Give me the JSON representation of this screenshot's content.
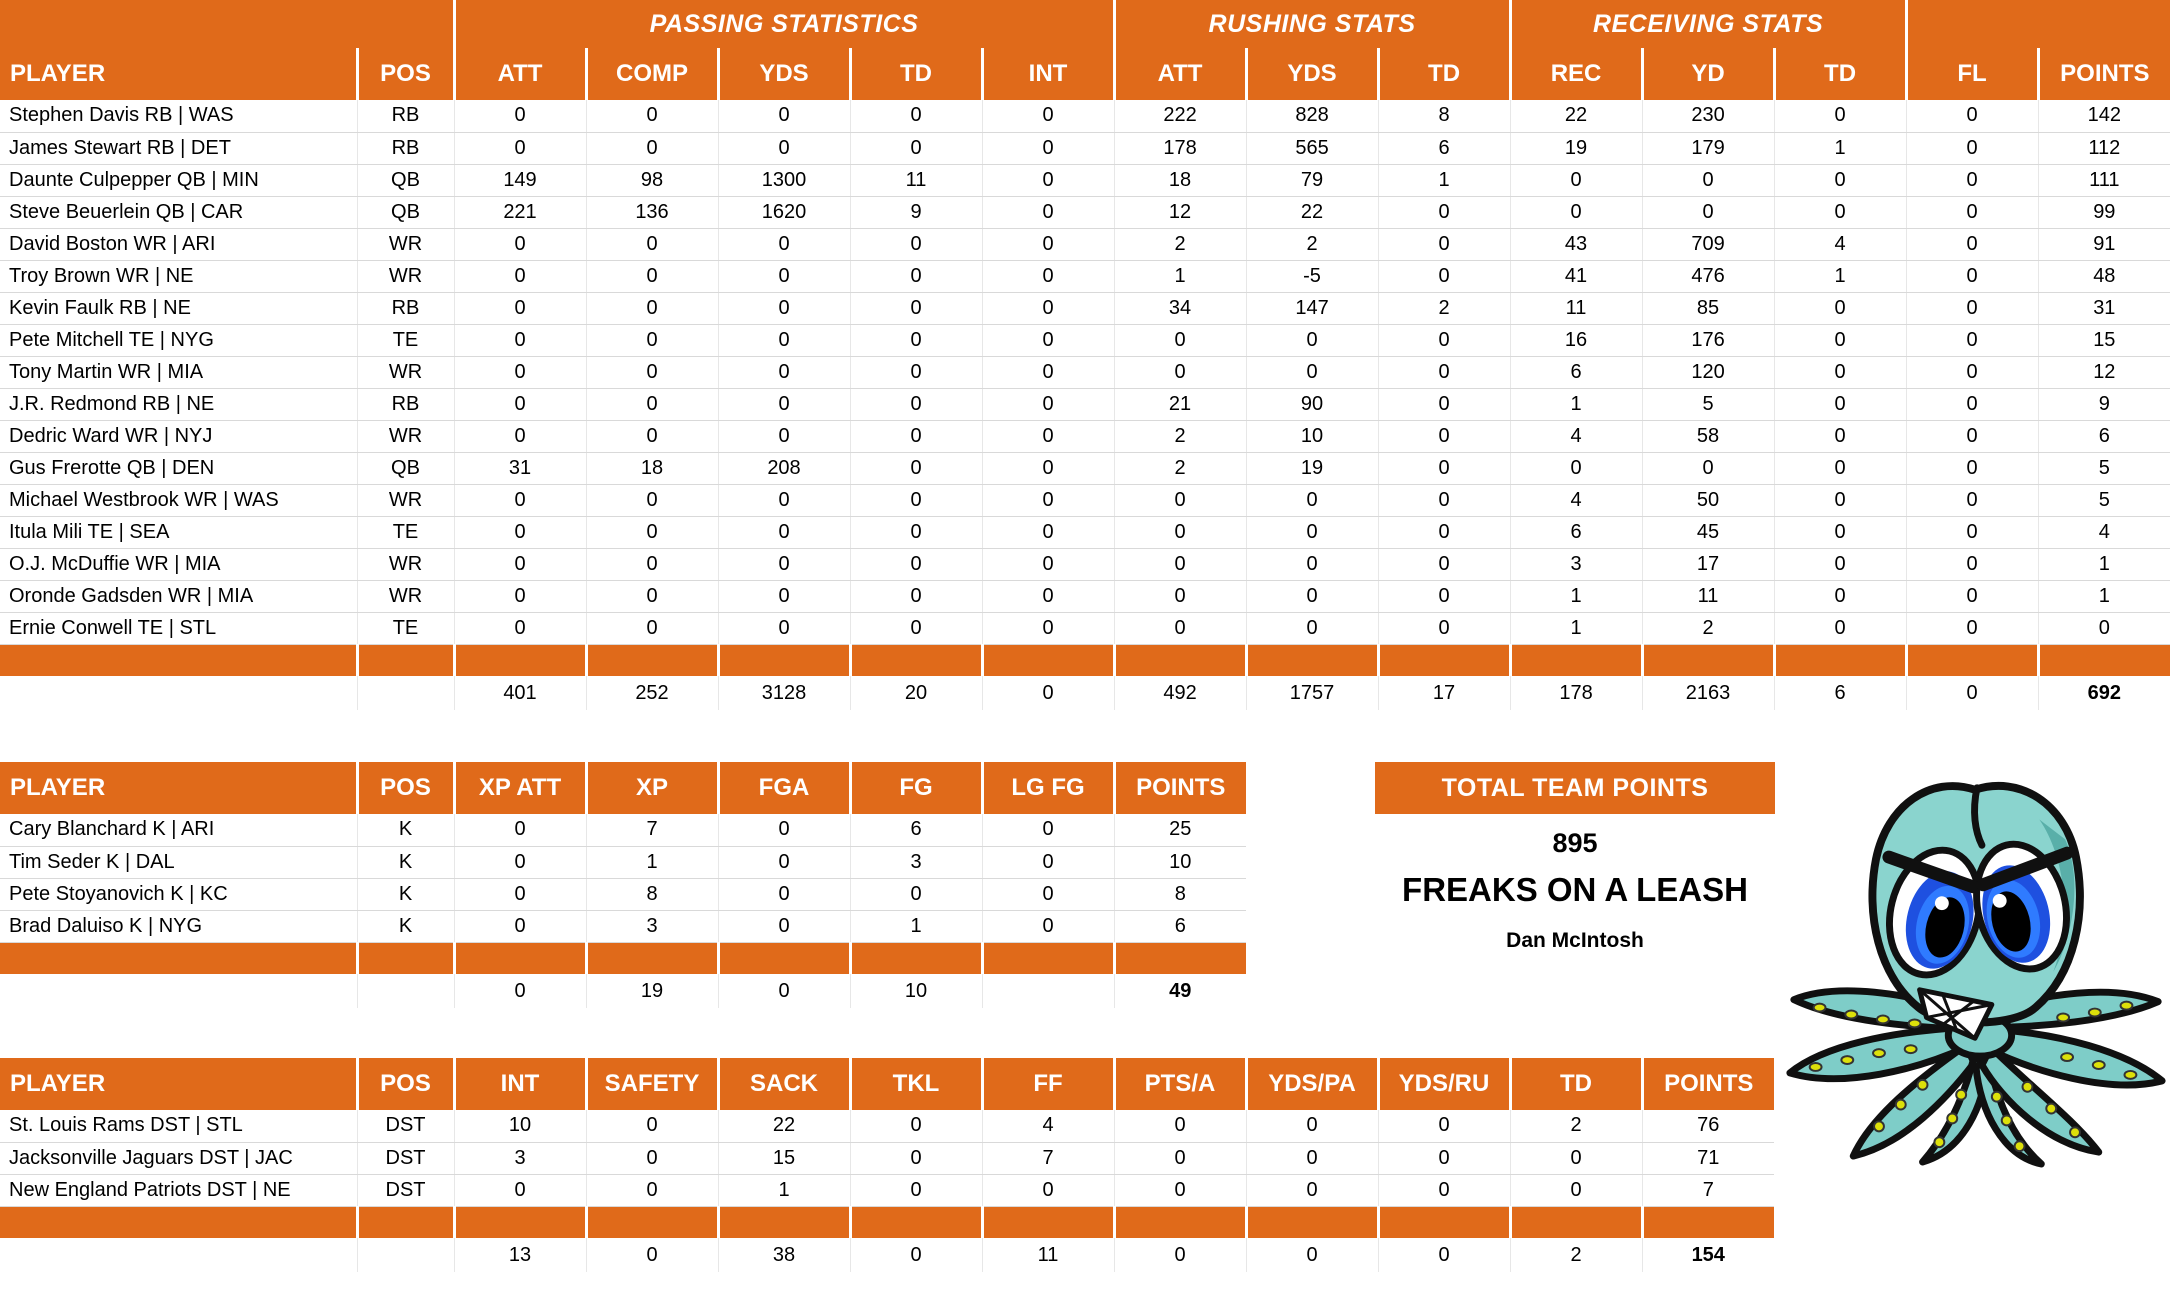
{
  "colors": {
    "accent_orange": "#E06A1A",
    "grid_line": "#D9D9D9",
    "header_text": "#FFFFFF",
    "body_text": "#000000",
    "mascot_teal": "#7ECDC8",
    "mascot_eye_blue": "#1E50E0",
    "mascot_sucker_yellow": "#DDE00A"
  },
  "offense_table": {
    "sections": [
      {
        "label": "",
        "span": 2
      },
      {
        "label": "PASSING STATISTICS",
        "span": 5
      },
      {
        "label": "RUSHING STATS",
        "span": 3
      },
      {
        "label": "RECEIVING STATS",
        "span": 3
      },
      {
        "label": "",
        "span": 2
      }
    ],
    "columns": [
      "PLAYER",
      "POS",
      "ATT",
      "COMP",
      "YDS",
      "TD",
      "INT",
      "ATT",
      "YDS",
      "TD",
      "REC",
      "YD",
      "TD",
      "FL",
      "POINTS"
    ],
    "rows": [
      [
        "Stephen Davis RB | WAS",
        "RB",
        "0",
        "0",
        "0",
        "0",
        "0",
        "222",
        "828",
        "8",
        "22",
        "230",
        "0",
        "0",
        "142"
      ],
      [
        "James Stewart RB | DET",
        "RB",
        "0",
        "0",
        "0",
        "0",
        "0",
        "178",
        "565",
        "6",
        "19",
        "179",
        "1",
        "0",
        "112"
      ],
      [
        "Daunte Culpepper QB | MIN",
        "QB",
        "149",
        "98",
        "1300",
        "11",
        "0",
        "18",
        "79",
        "1",
        "0",
        "0",
        "0",
        "0",
        "111"
      ],
      [
        "Steve Beuerlein QB | CAR",
        "QB",
        "221",
        "136",
        "1620",
        "9",
        "0",
        "12",
        "22",
        "0",
        "0",
        "0",
        "0",
        "0",
        "99"
      ],
      [
        "David Boston WR | ARI",
        "WR",
        "0",
        "0",
        "0",
        "0",
        "0",
        "2",
        "2",
        "0",
        "43",
        "709",
        "4",
        "0",
        "91"
      ],
      [
        "Troy Brown WR | NE",
        "WR",
        "0",
        "0",
        "0",
        "0",
        "0",
        "1",
        "-5",
        "0",
        "41",
        "476",
        "1",
        "0",
        "48"
      ],
      [
        "Kevin Faulk RB | NE",
        "RB",
        "0",
        "0",
        "0",
        "0",
        "0",
        "34",
        "147",
        "2",
        "11",
        "85",
        "0",
        "0",
        "31"
      ],
      [
        "Pete Mitchell TE | NYG",
        "TE",
        "0",
        "0",
        "0",
        "0",
        "0",
        "0",
        "0",
        "0",
        "16",
        "176",
        "0",
        "0",
        "15"
      ],
      [
        "Tony Martin WR | MIA",
        "WR",
        "0",
        "0",
        "0",
        "0",
        "0",
        "0",
        "0",
        "0",
        "6",
        "120",
        "0",
        "0",
        "12"
      ],
      [
        "J.R. Redmond RB | NE",
        "RB",
        "0",
        "0",
        "0",
        "0",
        "0",
        "21",
        "90",
        "0",
        "1",
        "5",
        "0",
        "0",
        "9"
      ],
      [
        "Dedric Ward WR | NYJ",
        "WR",
        "0",
        "0",
        "0",
        "0",
        "0",
        "2",
        "10",
        "0",
        "4",
        "58",
        "0",
        "0",
        "6"
      ],
      [
        "Gus Frerotte QB | DEN",
        "QB",
        "31",
        "18",
        "208",
        "0",
        "0",
        "2",
        "19",
        "0",
        "0",
        "0",
        "0",
        "0",
        "5"
      ],
      [
        "Michael Westbrook WR | WAS",
        "WR",
        "0",
        "0",
        "0",
        "0",
        "0",
        "0",
        "0",
        "0",
        "4",
        "50",
        "0",
        "0",
        "5"
      ],
      [
        "Itula Mili TE | SEA",
        "TE",
        "0",
        "0",
        "0",
        "0",
        "0",
        "0",
        "0",
        "0",
        "6",
        "45",
        "0",
        "0",
        "4"
      ],
      [
        "O.J. McDuffie WR | MIA",
        "WR",
        "0",
        "0",
        "0",
        "0",
        "0",
        "0",
        "0",
        "0",
        "3",
        "17",
        "0",
        "0",
        "1"
      ],
      [
        "Oronde Gadsden WR | MIA",
        "WR",
        "0",
        "0",
        "0",
        "0",
        "0",
        "0",
        "0",
        "0",
        "1",
        "11",
        "0",
        "0",
        "1"
      ],
      [
        "Ernie Conwell TE | STL",
        "TE",
        "0",
        "0",
        "0",
        "0",
        "0",
        "0",
        "0",
        "0",
        "1",
        "2",
        "0",
        "0",
        "0"
      ]
    ],
    "totals": [
      "",
      "",
      "401",
      "252",
      "3128",
      "20",
      "0",
      "492",
      "1757",
      "17",
      "178",
      "2163",
      "6",
      "0",
      "692"
    ]
  },
  "kicker_table": {
    "columns": [
      "PLAYER",
      "POS",
      "XP ATT",
      "XP",
      "FGA",
      "FG",
      "LG FG",
      "POINTS"
    ],
    "rows": [
      [
        "Cary Blanchard K | ARI",
        "K",
        "0",
        "7",
        "0",
        "6",
        "0",
        "25"
      ],
      [
        "Tim Seder K | DAL",
        "K",
        "0",
        "1",
        "0",
        "3",
        "0",
        "10"
      ],
      [
        "Pete Stoyanovich K | KC",
        "K",
        "0",
        "8",
        "0",
        "0",
        "0",
        "8"
      ],
      [
        "Brad Daluiso K | NYG",
        "K",
        "0",
        "3",
        "0",
        "1",
        "0",
        "6"
      ]
    ],
    "totals": [
      "",
      "",
      "0",
      "19",
      "0",
      "10",
      "",
      "49"
    ]
  },
  "dst_table": {
    "columns": [
      "PLAYER",
      "POS",
      "INT",
      "SAFETY",
      "SACK",
      "TKL",
      "FF",
      "PTS/A",
      "YDS/PA",
      "YDS/RU",
      "TD",
      "POINTS"
    ],
    "rows": [
      [
        "St. Louis Rams DST | STL",
        "DST",
        "10",
        "0",
        "22",
        "0",
        "4",
        "0",
        "0",
        "0",
        "2",
        "76"
      ],
      [
        "Jacksonville Jaguars DST | JAC",
        "DST",
        "3",
        "0",
        "15",
        "0",
        "7",
        "0",
        "0",
        "0",
        "0",
        "71"
      ],
      [
        "New England Patriots DST | NE",
        "DST",
        "0",
        "0",
        "1",
        "0",
        "0",
        "0",
        "0",
        "0",
        "0",
        "7"
      ]
    ],
    "totals": [
      "",
      "",
      "13",
      "0",
      "38",
      "0",
      "11",
      "0",
      "0",
      "0",
      "2",
      "154"
    ]
  },
  "team_panel": {
    "title": "TOTAL TEAM POINTS",
    "total_points": "895",
    "team_name": "FREAKS ON A LEASH",
    "owner_name": "Dan McIntosh"
  }
}
